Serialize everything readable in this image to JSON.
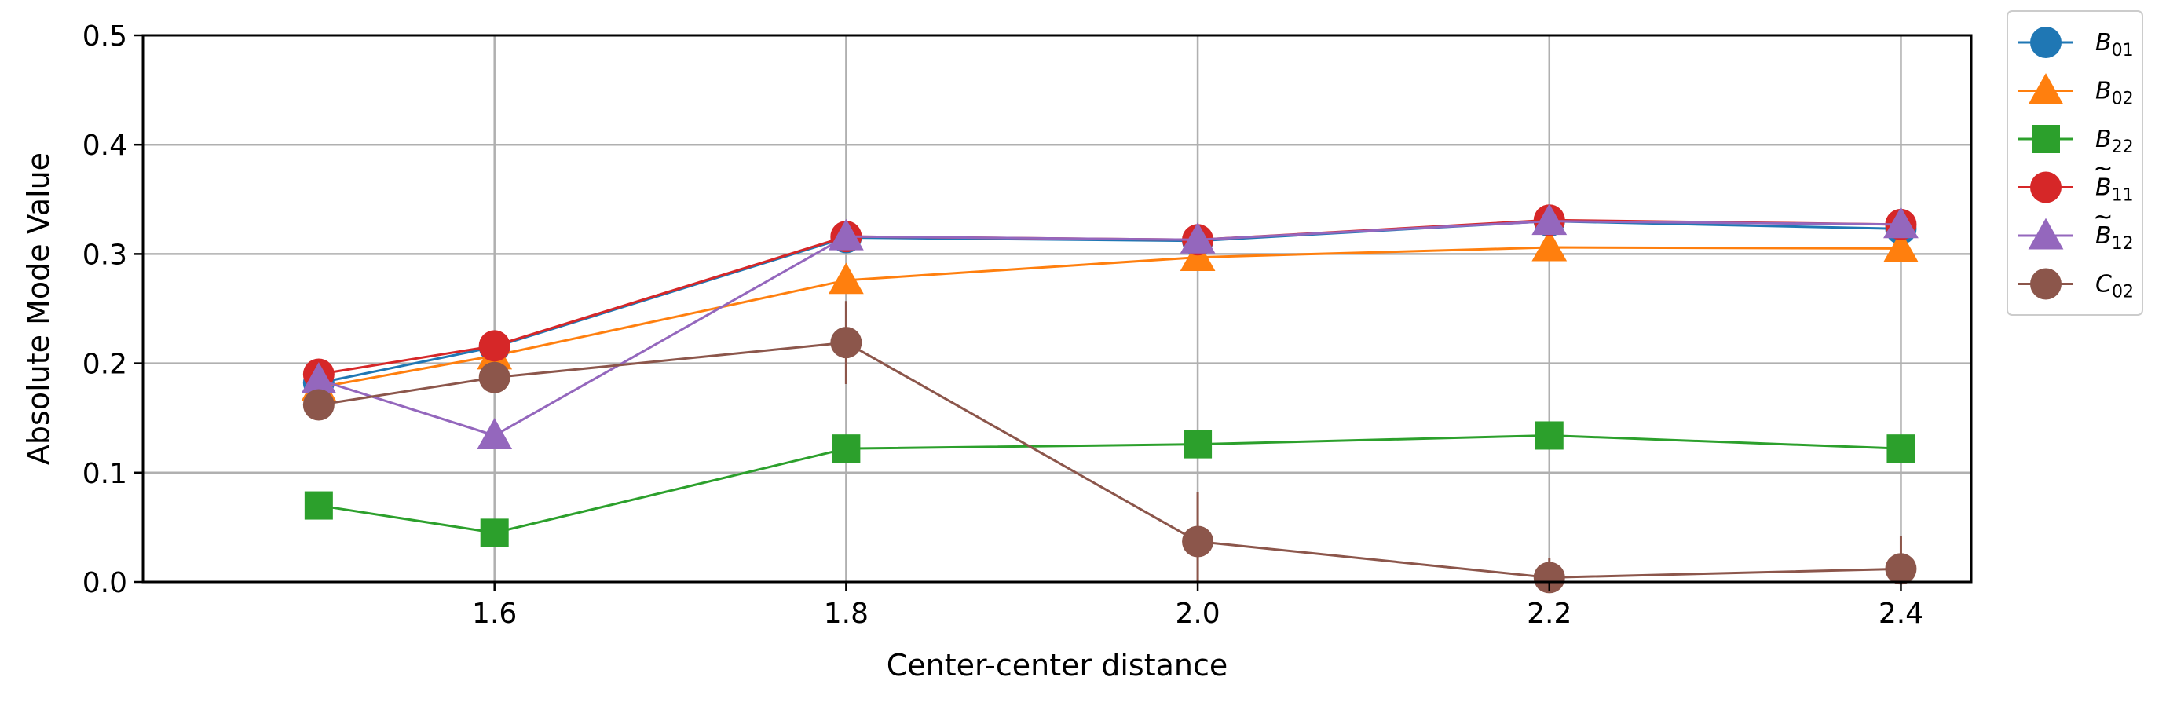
{
  "chart_data": {
    "type": "line",
    "xlabel": "Center-center distance",
    "ylabel": "Absolute Mode Value",
    "x": [
      1.5,
      1.6,
      1.8,
      2.0,
      2.2,
      2.4
    ],
    "xticks": [
      "1.6",
      "1.8",
      "2.0",
      "2.2",
      "2.4"
    ],
    "xtick_values": [
      1.6,
      1.8,
      2.0,
      2.2,
      2.4
    ],
    "yticks": [
      "0.0",
      "0.1",
      "0.2",
      "0.3",
      "0.4",
      "0.5"
    ],
    "ytick_values": [
      0.0,
      0.1,
      0.2,
      0.3,
      0.4,
      0.5
    ],
    "xlim": [
      1.4,
      2.44
    ],
    "ylim": [
      0.0,
      0.5
    ],
    "grid": true,
    "legend_position": "outside-top-right",
    "series": [
      {
        "name": "B",
        "accent": "",
        "sub": "01",
        "color": "#1f77b4",
        "marker": "circle",
        "values": [
          0.182,
          0.215,
          0.315,
          0.312,
          0.33,
          0.323
        ]
      },
      {
        "name": "B",
        "accent": "",
        "sub": "02",
        "color": "#ff7f0e",
        "marker": "triangle",
        "values": [
          0.178,
          0.207,
          0.276,
          0.297,
          0.306,
          0.305
        ]
      },
      {
        "name": "B",
        "accent": "",
        "sub": "22",
        "color": "#2ca02c",
        "marker": "square",
        "values": [
          0.07,
          0.045,
          0.122,
          0.126,
          0.134,
          0.122
        ]
      },
      {
        "name": "B",
        "accent": "~",
        "sub": "11",
        "color": "#d62728",
        "marker": "circle",
        "values": [
          0.19,
          0.216,
          0.316,
          0.313,
          0.331,
          0.327
        ]
      },
      {
        "name": "B",
        "accent": "~",
        "sub": "12",
        "color": "#9467bd",
        "marker": "triangle",
        "values": [
          0.185,
          0.134,
          0.316,
          0.313,
          0.33,
          0.327
        ]
      },
      {
        "name": "C",
        "accent": "",
        "sub": "02",
        "color": "#8c564b",
        "marker": "circle",
        "values": [
          0.162,
          0.187,
          0.219,
          0.037,
          0.004,
          0.012
        ],
        "errors": [
          0.006,
          0.006,
          0.038,
          0.045,
          0.018,
          0.03
        ]
      }
    ]
  }
}
